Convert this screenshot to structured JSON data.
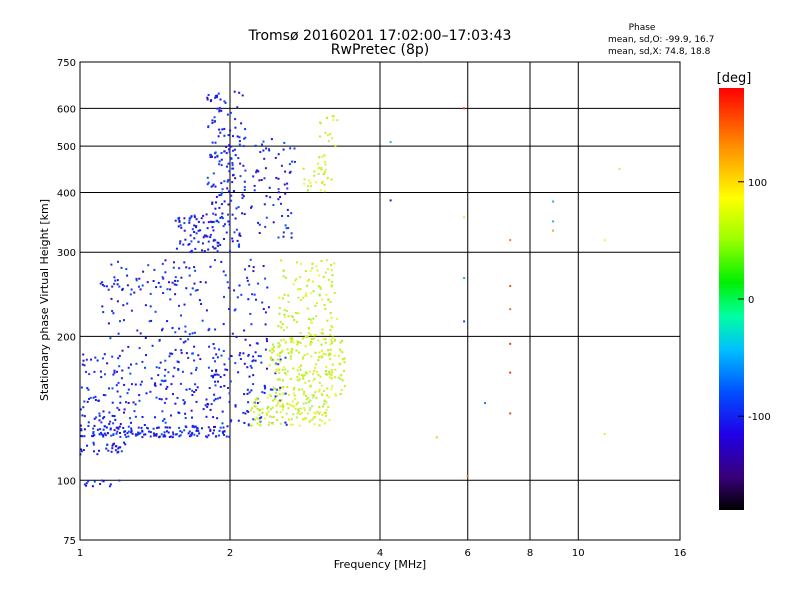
{
  "chart_data": {
    "type": "scatter",
    "title": "Tromsø 20160201 17:02:00–17:03:43",
    "subtitle": "RwPretec (8p)",
    "xlabel": "Frequency [MHz]",
    "ylabel": "Stationary phase Virtual Height [km]",
    "x_scale": "log",
    "y_scale": "log",
    "xlim": [
      1,
      16
    ],
    "ylim": [
      75,
      750
    ],
    "x_ticks": [
      1,
      2,
      4,
      6,
      8,
      10,
      16
    ],
    "y_ticks": [
      75,
      100,
      200,
      300,
      400,
      500,
      600,
      750
    ],
    "grid": true,
    "phase_stats": {
      "title": "Phase",
      "line_o": "mean, sd,O: -99.9, 16.7",
      "line_x": "mean, sd,X:  74.8, 18.8"
    },
    "colorbar": {
      "label": "[deg]",
      "ticks": [
        "100",
        "0",
        "-100"
      ],
      "tick_values": [
        100,
        0,
        -100
      ],
      "range": [
        -180,
        180
      ]
    },
    "series": [
      {
        "mode": "O",
        "phase_color": "#0a2bf0",
        "clusters": [
          {
            "x": [
              1.0,
              1.2
            ],
            "y": [
              97,
              102
            ],
            "n": 12
          },
          {
            "x": [
              1.0,
              1.25
            ],
            "y": [
              113,
              120
            ],
            "n": 30
          },
          {
            "x": [
              1.0,
              2.0
            ],
            "y": [
              123,
              130
            ],
            "n": 160
          },
          {
            "x": [
              1.0,
              2.6
            ],
            "y": [
              130,
              185
            ],
            "n": 300
          },
          {
            "x": [
              1.1,
              2.4
            ],
            "y": [
              185,
              290
            ],
            "n": 160
          },
          {
            "x": [
              1.1,
              1.6
            ],
            "y": [
              250,
              262
            ],
            "n": 25
          },
          {
            "x": [
              1.55,
              2.1
            ],
            "y": [
              300,
              360
            ],
            "n": 110
          },
          {
            "x": [
              1.8,
              2.15
            ],
            "y": [
              360,
              650
            ],
            "n": 140
          },
          {
            "x": [
              2.2,
              2.7
            ],
            "y": [
              320,
              520
            ],
            "n": 70
          }
        ]
      },
      {
        "mode": "X",
        "phase_color": "#c8f020",
        "clusters": [
          {
            "x": [
              2.2,
              3.2
            ],
            "y": [
              130,
              150
            ],
            "n": 130
          },
          {
            "x": [
              2.4,
              3.4
            ],
            "y": [
              150,
              200
            ],
            "n": 220
          },
          {
            "x": [
              2.5,
              3.3
            ],
            "y": [
              200,
              290
            ],
            "n": 110
          },
          {
            "x": [
              2.8,
              3.2
            ],
            "y": [
              400,
              450
            ],
            "n": 25
          },
          {
            "x": [
              3.0,
              3.3
            ],
            "y": [
              450,
              580
            ],
            "n": 22
          }
        ]
      },
      {
        "mode": "scattered",
        "points": [
          {
            "x": 4.2,
            "y": 510,
            "color": "#18b4f0"
          },
          {
            "x": 4.2,
            "y": 385,
            "color": "#2020c0"
          },
          {
            "x": 5.9,
            "y": 600,
            "color": "#e84010"
          },
          {
            "x": 5.9,
            "y": 355,
            "color": "#f0e060"
          },
          {
            "x": 5.9,
            "y": 265,
            "color": "#18b4f0"
          },
          {
            "x": 5.9,
            "y": 215,
            "color": "#1050e0"
          },
          {
            "x": 6.0,
            "y": 102,
            "color": "#f07030"
          },
          {
            "x": 7.3,
            "y": 318,
            "color": "#f08030"
          },
          {
            "x": 7.3,
            "y": 255,
            "color": "#e86020"
          },
          {
            "x": 7.3,
            "y": 228,
            "color": "#e07020"
          },
          {
            "x": 7.3,
            "y": 193,
            "color": "#e04020"
          },
          {
            "x": 7.3,
            "y": 168,
            "color": "#e04020"
          },
          {
            "x": 7.3,
            "y": 138,
            "color": "#e05020"
          },
          {
            "x": 8.9,
            "y": 383,
            "color": "#18b4f0"
          },
          {
            "x": 8.9,
            "y": 348,
            "color": "#18b4f0"
          },
          {
            "x": 8.9,
            "y": 333,
            "color": "#e0b020"
          },
          {
            "x": 11.3,
            "y": 318,
            "color": "#f0f060"
          },
          {
            "x": 11.3,
            "y": 125,
            "color": "#e0f030"
          },
          {
            "x": 12.1,
            "y": 448,
            "color": "#f0e060"
          },
          {
            "x": 5.2,
            "y": 123,
            "color": "#a0f020"
          },
          {
            "x": 6.5,
            "y": 145,
            "color": "#1080e0"
          }
        ]
      }
    ]
  }
}
